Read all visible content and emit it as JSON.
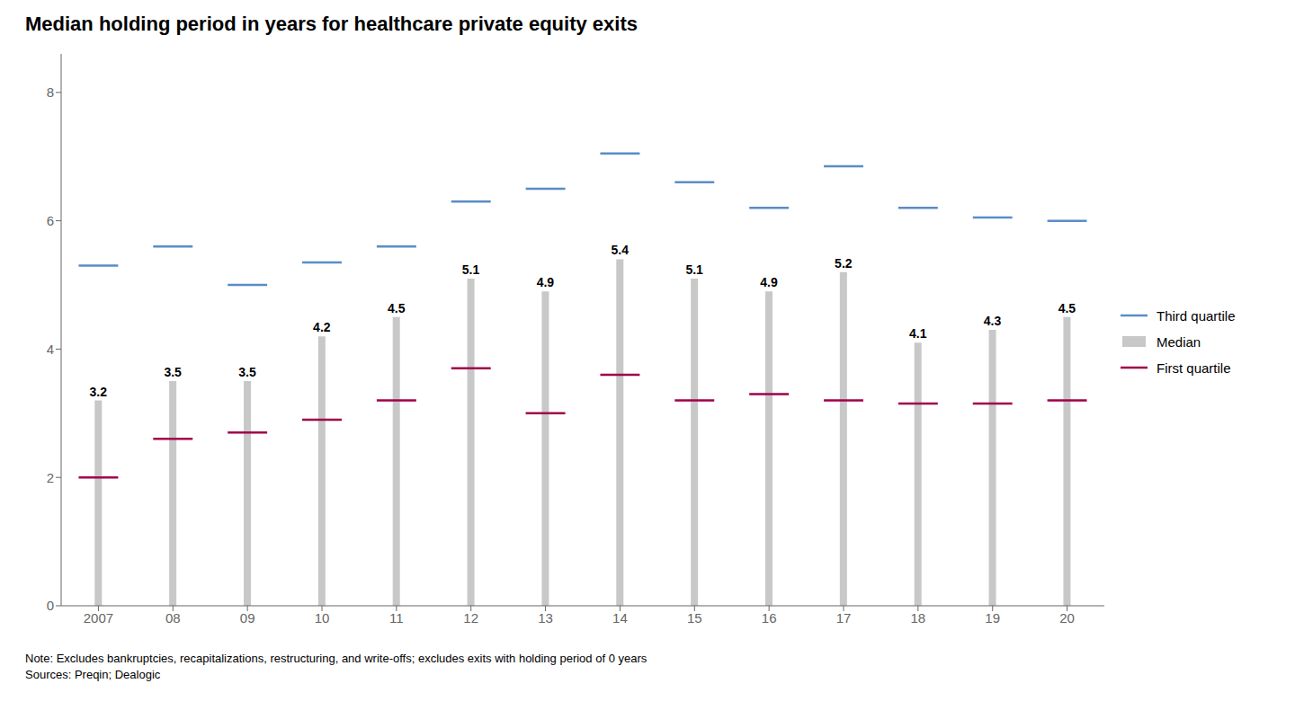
{
  "chart_data": {
    "type": "bar",
    "title": "Median holding period in years for healthcare private equity exits",
    "categories": [
      "2007",
      "08",
      "09",
      "10",
      "11",
      "12",
      "13",
      "14",
      "15",
      "16",
      "17",
      "18",
      "19",
      "20"
    ],
    "series": [
      {
        "name": "Third quartile",
        "type": "scatter",
        "marker": "dash",
        "color": "#5b8cc8",
        "values": [
          5.3,
          5.6,
          5.0,
          5.35,
          5.6,
          6.3,
          6.5,
          7.05,
          6.6,
          6.2,
          6.85,
          6.2,
          6.05,
          6.0
        ]
      },
      {
        "name": "Median",
        "type": "bar",
        "color": "#c8c8c8",
        "data_labels": true,
        "values": [
          3.2,
          3.5,
          3.5,
          4.2,
          4.5,
          5.1,
          4.9,
          5.4,
          5.1,
          4.9,
          5.2,
          4.1,
          4.3,
          4.5
        ]
      },
      {
        "name": "First quartile",
        "type": "scatter",
        "marker": "dash",
        "color": "#a0004a",
        "values": [
          2.0,
          2.6,
          2.7,
          2.9,
          3.2,
          3.7,
          3.0,
          3.6,
          3.2,
          3.3,
          3.2,
          3.15,
          3.15,
          3.2
        ]
      }
    ],
    "ylim": [
      0,
      8.6
    ],
    "yticks": [
      0,
      2,
      4,
      6,
      8
    ],
    "grid": false,
    "legend": "right",
    "annotations": [
      "Note: Excludes bankruptcies, recapitalizations, restructuring, and write-offs; excludes exits with holding period of 0 years\nSources: Preqin; Dealogic"
    ]
  }
}
